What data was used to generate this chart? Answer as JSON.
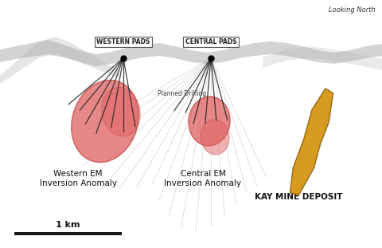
{
  "bg_color": "#ffffff",
  "looking_north_text": "Looking North",
  "scale_bar_label": "1 km",
  "western_pads_label": "WESTERN PADS",
  "central_pads_label": "CENTRAL PADS",
  "planned_drilling_label": "Planned Drilling",
  "western_em_label": "Western EM\nInversion Anomaly",
  "central_em_label": "Central EM\nInversion Anomaly",
  "kay_mine_label": "KAY MINE DEPOSIT",
  "terrain_color": "#b0b0b0",
  "terrain_alpha": 0.55,
  "western_blob_color": "#e06060",
  "western_blob_alpha": 0.75,
  "central_blob_color": "#e06060",
  "central_blob_alpha": 0.75,
  "kay_color": "#d4900a",
  "kay_alpha": 0.9,
  "drill_line_color": "#aaaaaa",
  "drill_line_alpha": 0.5,
  "dark_drill_color": "#222222",
  "dark_drill_alpha": 0.85,
  "western_drill_angles": [
    -50,
    -40,
    -30,
    -20,
    -10,
    0,
    10
  ],
  "western_drill_lengths": [
    90,
    85,
    95,
    100,
    88,
    92,
    87
  ],
  "central_drill_angles": [
    -35,
    -25,
    -15,
    -5,
    5,
    15
  ],
  "central_drill_lengths": [
    80,
    75,
    85,
    82,
    78,
    80
  ],
  "gray_drill_angles": [
    -60,
    -55,
    -50,
    -45,
    -40,
    -35,
    -30,
    -25,
    -20,
    -15,
    -10,
    -5,
    0,
    5,
    10,
    15,
    20,
    25
  ],
  "gray_drill_lengths": [
    180,
    195,
    210,
    220,
    215,
    200,
    185,
    175,
    190,
    205,
    215,
    220,
    210,
    200,
    185,
    175,
    170,
    165
  ]
}
